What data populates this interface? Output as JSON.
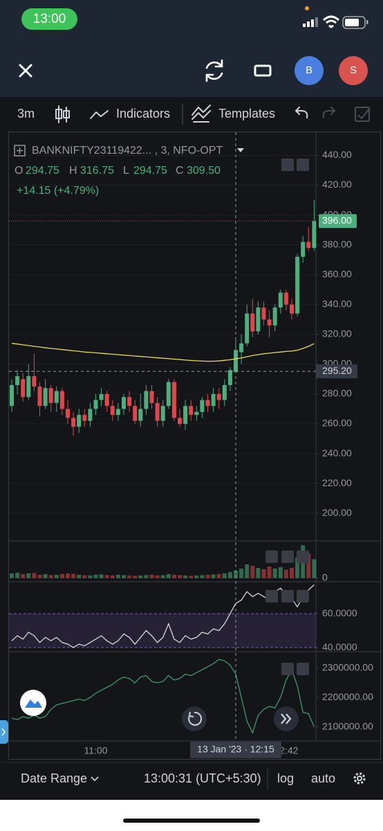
{
  "status_bar": {
    "time": "13:00"
  },
  "header": {
    "avatars": [
      "B",
      "S"
    ]
  },
  "toolbar": {
    "interval": "3m",
    "indicators": "Indicators",
    "templates": "Templates"
  },
  "legend": {
    "symbol": "BANKNIFTY23119422... , 3, NFO-OPT",
    "ohlc": [
      {
        "key": "O",
        "value": "294.75"
      },
      {
        "key": "H",
        "value": "316.75"
      },
      {
        "key": "L",
        "value": "294.75"
      },
      {
        "key": "C",
        "value": "309.50"
      }
    ],
    "change": "+14.15 (+4.79%)"
  },
  "chart_data": [
    {
      "type": "candlestick",
      "categories": [
        null,
        null,
        null,
        null,
        null,
        null,
        null,
        null,
        null,
        null,
        null,
        null,
        null,
        null,
        null,
        "11:00",
        null,
        null,
        null,
        null,
        null,
        null,
        null,
        null,
        null,
        null,
        null,
        null,
        null,
        null,
        null,
        null,
        null,
        null,
        null,
        null,
        null,
        null,
        null,
        null,
        null,
        null,
        null,
        null,
        null,
        null,
        null,
        null,
        null,
        "12:42",
        null,
        null,
        null,
        null,
        null
      ],
      "open": [
        272,
        286,
        290,
        278,
        292,
        285,
        272,
        284,
        274,
        282,
        270,
        264,
        258,
        266,
        262,
        270,
        276,
        280,
        272,
        266,
        270,
        278,
        272,
        262,
        270,
        282,
        274,
        262,
        272,
        288,
        264,
        260,
        272,
        266,
        268,
        276,
        272,
        280,
        276,
        286,
        294.75,
        308,
        314,
        334,
        322,
        338,
        330,
        326,
        338,
        348,
        340,
        334,
        372,
        382,
        378
      ],
      "high": [
        290,
        296,
        294,
        300,
        307,
        288,
        290,
        286,
        285,
        284,
        276,
        268,
        270,
        270,
        274,
        280,
        284,
        282,
        276,
        274,
        280,
        282,
        276,
        280,
        286,
        286,
        278,
        276,
        290,
        290,
        270,
        276,
        276,
        272,
        278,
        280,
        284,
        284,
        290,
        298,
        316.75,
        320,
        340,
        344,
        342,
        342,
        336,
        340,
        350,
        350,
        344,
        374,
        386,
        392,
        410
      ],
      "low": [
        268,
        280,
        275,
        276,
        282,
        265,
        270,
        268,
        268,
        266,
        260,
        252,
        254,
        258,
        258,
        266,
        272,
        268,
        262,
        262,
        266,
        268,
        260,
        258,
        266,
        270,
        258,
        258,
        270,
        262,
        258,
        256,
        262,
        262,
        264,
        268,
        268,
        270,
        272,
        282,
        294.75,
        300,
        312,
        318,
        320,
        326,
        318,
        322,
        334,
        336,
        330,
        332,
        368,
        376,
        376
      ],
      "close": [
        286,
        292,
        278,
        292,
        285,
        272,
        284,
        274,
        282,
        270,
        264,
        258,
        266,
        262,
        270,
        276,
        280,
        272,
        266,
        270,
        278,
        272,
        262,
        270,
        282,
        274,
        262,
        272,
        288,
        264,
        260,
        272,
        266,
        268,
        276,
        272,
        280,
        276,
        286,
        296,
        309.5,
        314,
        334,
        322,
        338,
        330,
        326,
        338,
        348,
        340,
        334,
        372,
        382,
        378,
        396
      ],
      "up_color": "#4caf7d",
      "down_color": "#e0474c",
      "ma": {
        "color": "#e8dc4a",
        "values": [
          314,
          313.5,
          313,
          312.5,
          312,
          311.5,
          311,
          310.6,
          310.2,
          309.8,
          309.4,
          309,
          308.6,
          308.2,
          307.9,
          307.6,
          307.3,
          307,
          306.7,
          306.4,
          306.1,
          305.8,
          305.5,
          305.2,
          304.9,
          304.6,
          304.3,
          304,
          303.7,
          303.4,
          303.1,
          302.8,
          302.5,
          302.3,
          302.1,
          302,
          302,
          302.2,
          302.6,
          303,
          303.6,
          304.2,
          305,
          305.8,
          306.4,
          307,
          307.4,
          307.8,
          308.2,
          308.6,
          308.8,
          309.4,
          310.6,
          312,
          313.8
        ]
      },
      "ylim": [
        182,
        456
      ],
      "yticks": [
        {
          "value": 200,
          "label": "200.00"
        },
        {
          "value": 220,
          "label": "220.00"
        },
        {
          "value": 240,
          "label": "240.00"
        },
        {
          "value": 260,
          "label": "260.00"
        },
        {
          "value": 280,
          "label": "280.00"
        },
        {
          "value": 300,
          "label": "300.00"
        },
        {
          "value": 320,
          "label": "320.00"
        },
        {
          "value": 340,
          "label": "340.00"
        },
        {
          "value": 360,
          "label": "360.00"
        },
        {
          "value": 380,
          "label": "380.00"
        },
        {
          "value": 400,
          "label": "400.00"
        },
        {
          "value": 420,
          "label": "420.00"
        },
        {
          "value": 440,
          "label": "440.00"
        }
      ],
      "last_price": {
        "value": 396,
        "label": "396.00"
      },
      "crosshair": {
        "x_label": "13 Jan '23 · 12:15",
        "y": {
          "value": 295.2,
          "label": "295.20"
        }
      }
    },
    {
      "type": "bar",
      "values": [
        14,
        16,
        12,
        14,
        15,
        10,
        12,
        9,
        10,
        12,
        14,
        13,
        10,
        9,
        8,
        10,
        11,
        9,
        8,
        10,
        9,
        8,
        7,
        8,
        9,
        10,
        8,
        9,
        12,
        10,
        9,
        8,
        7,
        8,
        9,
        10,
        11,
        12,
        14,
        18,
        22,
        28,
        40,
        36,
        30,
        26,
        34,
        28,
        32,
        25,
        30,
        60,
        95,
        70,
        55
      ],
      "ylim": [
        0,
        100
      ],
      "yticks": [
        0
      ]
    },
    {
      "type": "line",
      "color": "#d8d8d8",
      "values": [
        44,
        47,
        45,
        49,
        47,
        43,
        46,
        44,
        46,
        43,
        42,
        40,
        42,
        41,
        43,
        45,
        47,
        44,
        42,
        44,
        48,
        46,
        42,
        46,
        50,
        47,
        43,
        46,
        54,
        45,
        43,
        47,
        45,
        46,
        49,
        48,
        51,
        50,
        54,
        60,
        66,
        68,
        73,
        70,
        72,
        70,
        68,
        73,
        75,
        71,
        69,
        64,
        70,
        74,
        77
      ],
      "band": [
        40,
        60
      ],
      "ylim": [
        38,
        78
      ],
      "yticks": [
        {
          "value": 60,
          "label": "60.0000"
        },
        {
          "value": 40,
          "label": "40.0000"
        }
      ]
    },
    {
      "type": "line",
      "color": "#3f9a6a",
      "values": [
        2130000,
        2125000,
        2135000,
        2130000,
        2140000,
        2130000,
        2135000,
        2160000,
        2175000,
        2180000,
        2185000,
        2190000,
        2195000,
        2190000,
        2200000,
        2215000,
        2225000,
        2235000,
        2245000,
        2260000,
        2270000,
        2265000,
        2250000,
        2270000,
        2275000,
        2255000,
        2250000,
        2255000,
        2275000,
        2260000,
        2265000,
        2280000,
        2275000,
        2285000,
        2295000,
        2305000,
        2315000,
        2330000,
        2325000,
        2310000,
        2280000,
        2200000,
        2120000,
        2080000,
        2140000,
        2160000,
        2170000,
        2165000,
        2200000,
        2260000,
        2295000,
        2240000,
        2150000,
        2145000,
        2100000
      ],
      "ylim": [
        2057000,
        2354000
      ],
      "yticks": [
        {
          "value": 2300000,
          "label": "2300000.00"
        },
        {
          "value": 2200000,
          "label": "2200000.00"
        },
        {
          "value": 2100000,
          "label": "2100000.00"
        }
      ]
    }
  ],
  "bottom_bar": {
    "date_range": "Date Range",
    "time": "13:00:31 (UTC+5:30)",
    "log": "log",
    "auto": "auto"
  }
}
